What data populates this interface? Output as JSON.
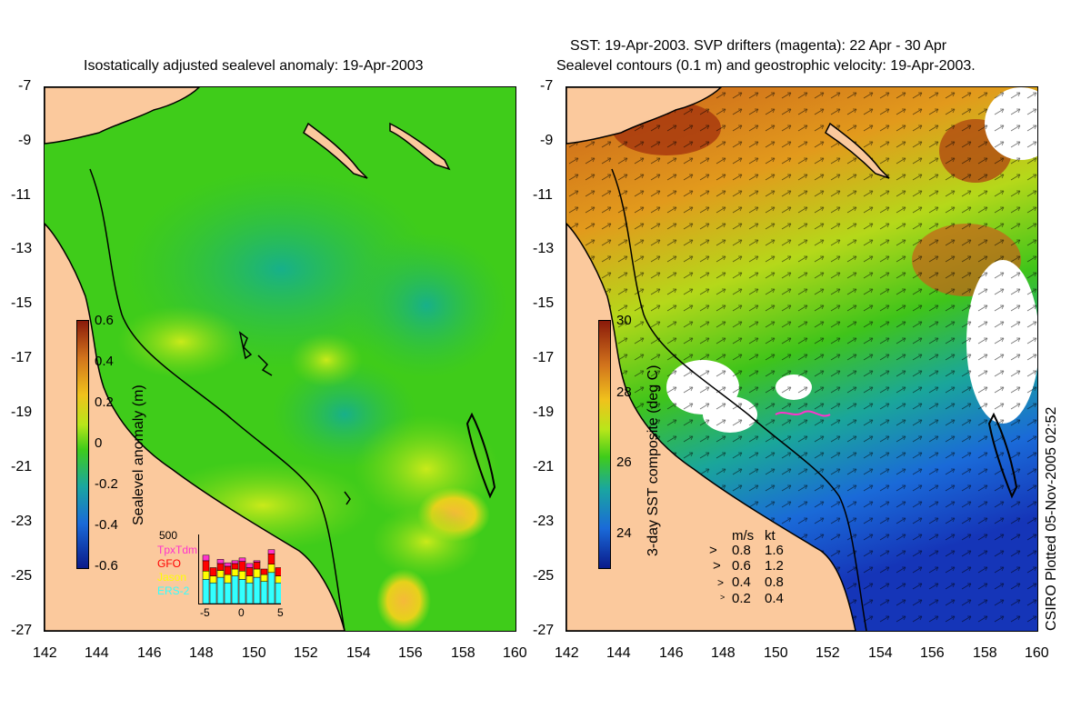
{
  "left": {
    "title": "Isostatically adjusted sealevel anomaly: 19-Apr-2003",
    "colorbar": {
      "label": "Sealevel anomaly (m)",
      "ticks": [
        "0.6",
        "0.4",
        "0.2",
        "0",
        "-0.2",
        "-0.4",
        "-0.6"
      ]
    },
    "histogram": {
      "ymax_label": "500",
      "series": [
        "TpxTdm",
        "GFO",
        "Jason",
        "ERS-2"
      ],
      "series_colors": [
        "#ff33cc",
        "#ff0000",
        "#ffff00",
        "#33ffff"
      ],
      "xticks": [
        "-5",
        "0",
        "5"
      ],
      "bars": [
        {
          "ers2": 0.35,
          "jason": 0.12,
          "gfo": 0.15,
          "tpx": 0.08
        },
        {
          "ers2": 0.3,
          "jason": 0.1,
          "gfo": 0.12,
          "tpx": 0.0
        },
        {
          "ers2": 0.38,
          "jason": 0.1,
          "gfo": 0.1,
          "tpx": 0.06
        },
        {
          "ers2": 0.3,
          "jason": 0.12,
          "gfo": 0.12,
          "tpx": 0.05
        },
        {
          "ers2": 0.4,
          "jason": 0.1,
          "gfo": 0.08,
          "tpx": 0.04
        },
        {
          "ers2": 0.35,
          "jason": 0.12,
          "gfo": 0.14,
          "tpx": 0.05
        },
        {
          "ers2": 0.3,
          "jason": 0.1,
          "gfo": 0.12,
          "tpx": 0.06
        },
        {
          "ers2": 0.38,
          "jason": 0.12,
          "gfo": 0.1,
          "tpx": 0.02
        },
        {
          "ers2": 0.32,
          "jason": 0.1,
          "gfo": 0.08,
          "tpx": 0.0
        },
        {
          "ers2": 0.45,
          "jason": 0.12,
          "gfo": 0.15,
          "tpx": 0.06
        },
        {
          "ers2": 0.3,
          "jason": 0.1,
          "gfo": 0.12,
          "tpx": 0.0
        }
      ]
    }
  },
  "right": {
    "title_line1": "SST: 19-Apr-2003. SVP drifters (magenta): 22 Apr - 30 Apr",
    "title_line2": "Sealevel contours (0.1 m) and geostrophic velocity: 19-Apr-2003.",
    "colorbar": {
      "label": "3-day SST composite (deg C)",
      "ticks": [
        "30",
        "28",
        "26",
        "24"
      ]
    },
    "velocity_legend": {
      "header_ms": "m/s",
      "header_kt": "kt",
      "rows": [
        {
          "ms": "0.8",
          "kt": "1.6"
        },
        {
          "ms": "0.6",
          "kt": "1.2"
        },
        {
          "ms": "0.4",
          "kt": "0.8"
        },
        {
          "ms": "0.2",
          "kt": "0.4"
        }
      ]
    }
  },
  "axes": {
    "lon_ticks": [
      "142",
      "144",
      "146",
      "148",
      "150",
      "152",
      "154",
      "156",
      "158",
      "160"
    ],
    "lat_ticks": [
      "-7",
      "-9",
      "-11",
      "-13",
      "-15",
      "-17",
      "-19",
      "-21",
      "-23",
      "-25",
      "-27"
    ]
  },
  "side_caption": "CSIRO Plotted 05-Nov-2005 02:52",
  "colors": {
    "land": "#fbc99d",
    "sla_main": "#3fcc1a",
    "sla_low": "#1fb860",
    "sla_high": "#b5e81d",
    "sla_peak": "#f2c21c",
    "sst_warm": "#d2741c",
    "sst_hot": "#a8390e",
    "sst_mid": "#7fd11a",
    "sst_cool": "#1aa6a0",
    "sst_cold": "#1540c8"
  }
}
